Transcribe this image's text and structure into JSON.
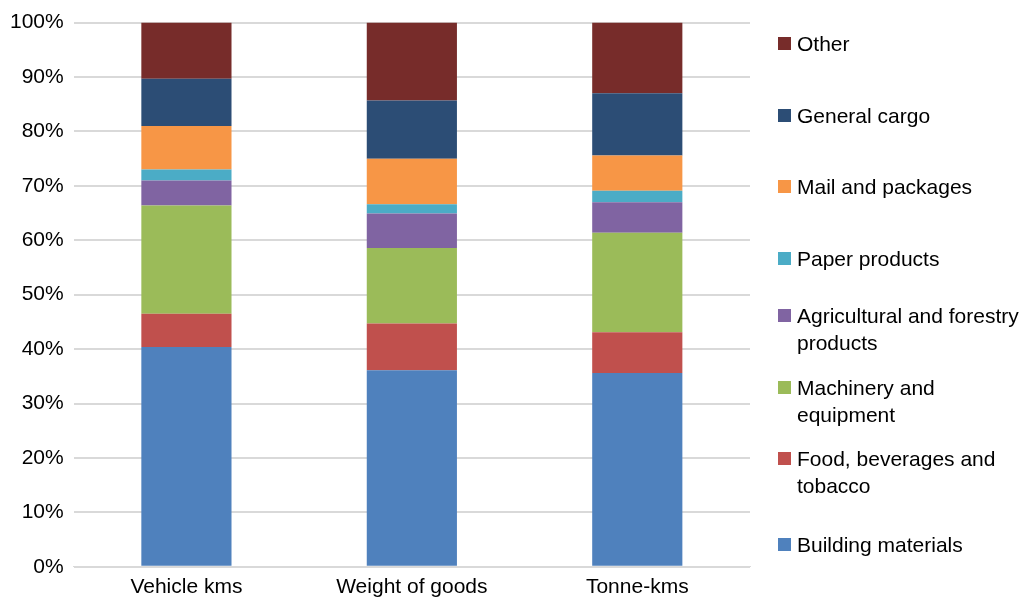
{
  "chart_data": {
    "type": "bar",
    "stacked": true,
    "categories": [
      "Vehicle kms",
      "Weight of goods",
      "Tonne-kms"
    ],
    "series": [
      {
        "name": "Building materials",
        "color": "#4f81bd",
        "values": [
          40.4,
          36.1,
          35.6
        ]
      },
      {
        "name": "Food, beverages and tobacco",
        "color": "#c0504d",
        "values": [
          6.1,
          8.6,
          7.5
        ]
      },
      {
        "name": "Machinery and equipment",
        "color": "#9bbb59",
        "values": [
          19.9,
          13.9,
          18.3
        ]
      },
      {
        "name": "Agricultural and forestry products",
        "color": "#8064a2",
        "values": [
          4.6,
          6.3,
          5.6
        ]
      },
      {
        "name": "Paper products",
        "color": "#4bacc6",
        "values": [
          2.0,
          1.7,
          2.1
        ]
      },
      {
        "name": "Mail and packages",
        "color": "#f79646",
        "values": [
          8.0,
          8.4,
          6.5
        ]
      },
      {
        "name": "General cargo",
        "color": "#2c4d75",
        "values": [
          8.7,
          10.7,
          11.4
        ]
      },
      {
        "name": "Other",
        "color": "#772c2a",
        "values": [
          10.3,
          14.3,
          13.0
        ]
      }
    ],
    "ylim": [
      0,
      100
    ],
    "yticks": [
      {
        "value": 0,
        "label": "0%"
      },
      {
        "value": 10,
        "label": "10%"
      },
      {
        "value": 20,
        "label": "20%"
      },
      {
        "value": 30,
        "label": "30%"
      },
      {
        "value": 40,
        "label": "40%"
      },
      {
        "value": 50,
        "label": "50%"
      },
      {
        "value": 60,
        "label": "60%"
      },
      {
        "value": 70,
        "label": "70%"
      },
      {
        "value": 80,
        "label": "80%"
      },
      {
        "value": 90,
        "label": "90%"
      },
      {
        "value": 100,
        "label": "100%"
      }
    ],
    "grid": "y",
    "legend": "right"
  }
}
